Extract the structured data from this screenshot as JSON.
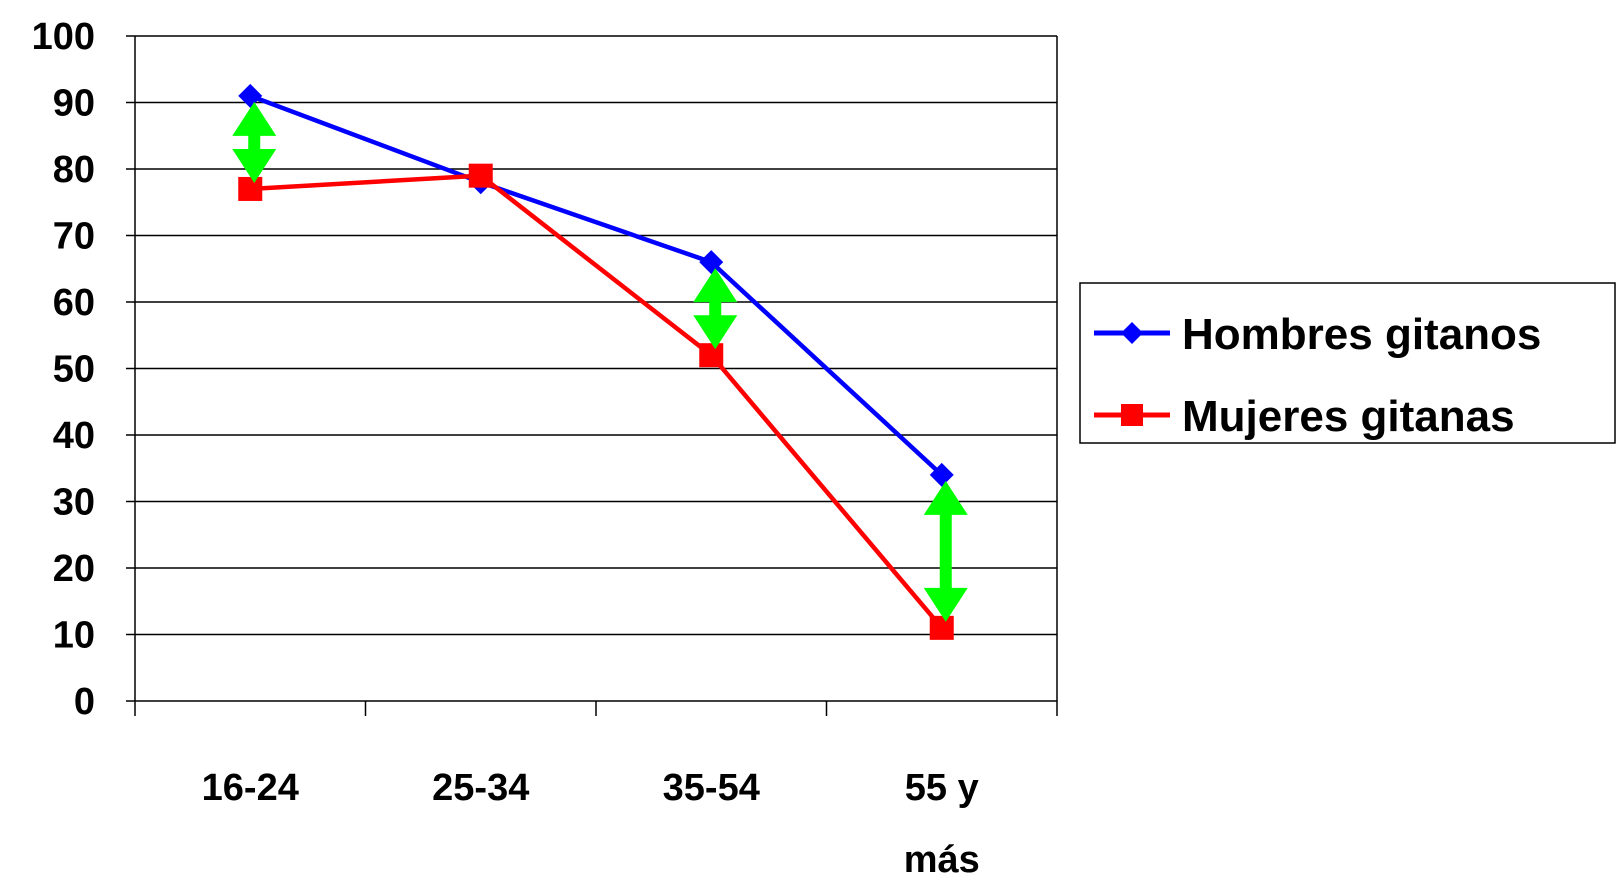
{
  "chart_data": {
    "type": "line",
    "categories": [
      [
        "16-24"
      ],
      [
        "25-34"
      ],
      [
        "35-54"
      ],
      [
        "55 y",
        "más"
      ]
    ],
    "ylim": [
      0,
      100
    ],
    "yticks": [
      "0",
      "10",
      "20",
      "30",
      "40",
      "50",
      "60",
      "70",
      "80",
      "90",
      "100"
    ],
    "grid": true,
    "legend_position": "right",
    "series": [
      {
        "name": "Hombres gitanos",
        "color": "#0000ff",
        "marker": "diamond",
        "values": [
          91,
          78,
          66,
          34
        ]
      },
      {
        "name": "Mujeres gitanas",
        "color": "#ff0000",
        "marker": "square",
        "values": [
          77,
          79,
          52,
          11
        ]
      }
    ],
    "gap_arrows": {
      "color": "#00ff00",
      "icon": "double-headed-arrow",
      "categories": [
        0,
        2,
        3
      ]
    }
  }
}
